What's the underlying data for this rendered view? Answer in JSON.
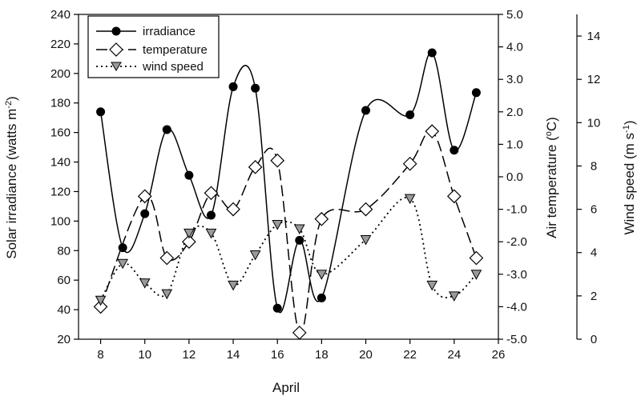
{
  "chart_data": {
    "type": "line",
    "title": "",
    "xlabel": "April",
    "x_ticks": [
      8,
      10,
      12,
      14,
      16,
      18,
      20,
      22,
      24,
      26
    ],
    "xlim": [
      7,
      26
    ],
    "axes": {
      "left": {
        "label": "Solar irradiance (watts m^-2)",
        "label_main": "Solar irradiance (watts m",
        "label_sup": "-2",
        "label_end": ")",
        "ylim": [
          20,
          240
        ],
        "ticks": [
          "20",
          "40",
          "60",
          "80",
          "100",
          "120",
          "140",
          "160",
          "180",
          "200",
          "220",
          "240"
        ]
      },
      "right1": {
        "label": "Air temperature (oC)",
        "label_main": "Air temperature (",
        "label_sup": "o",
        "label_end": "C)",
        "ylim": [
          -5,
          5
        ],
        "ticks": [
          "-5.0",
          "-4.0",
          "-3.0",
          "-2.0",
          "-1.0",
          "0.0",
          "1.0",
          "2.0",
          "3.0",
          "4.0",
          "5.0"
        ]
      },
      "right2": {
        "label": "Wind speed (m s^-1)",
        "label_main": "Wind speed (m s",
        "label_sup": "-1",
        "label_end": ")",
        "ylim": [
          0,
          15
        ],
        "ticks": [
          "0",
          "2",
          "4",
          "6",
          "8",
          "10",
          "12",
          "14"
        ]
      }
    },
    "legend": {
      "position": "top-left"
    },
    "series": [
      {
        "name": "irradiance",
        "axis": "left",
        "marker": "filled-circle",
        "line": "solid",
        "x": [
          8,
          9,
          10,
          11,
          12,
          13,
          14,
          15,
          16,
          17,
          18,
          20,
          22,
          23,
          24,
          25
        ],
        "y": [
          174,
          82,
          105,
          162,
          131,
          104,
          191,
          190,
          41,
          87,
          48,
          175,
          172,
          214,
          148,
          187
        ]
      },
      {
        "name": "temperature",
        "axis": "right1",
        "marker": "open-diamond",
        "line": "dashed",
        "x": [
          8,
          10,
          11,
          12,
          13,
          14,
          15,
          16,
          17,
          18,
          20,
          22,
          23,
          24,
          25
        ],
        "y": [
          -4.0,
          -0.6,
          -2.5,
          -2.0,
          -0.5,
          -1.0,
          0.3,
          0.5,
          -4.8,
          -1.3,
          -1.0,
          0.4,
          1.4,
          -0.6,
          -2.5
        ]
      },
      {
        "name": "wind speed",
        "axis": "right2",
        "marker": "down-triangle",
        "line": "dotted",
        "x": [
          8,
          9,
          10,
          11,
          12,
          13,
          14,
          15,
          16,
          17,
          18,
          20,
          22,
          23,
          24,
          25
        ],
        "y": [
          1.8,
          3.5,
          2.6,
          2.1,
          4.9,
          4.9,
          2.5,
          3.9,
          5.3,
          5.1,
          3.0,
          4.6,
          6.5,
          2.5,
          2.0,
          3.0
        ]
      }
    ]
  }
}
